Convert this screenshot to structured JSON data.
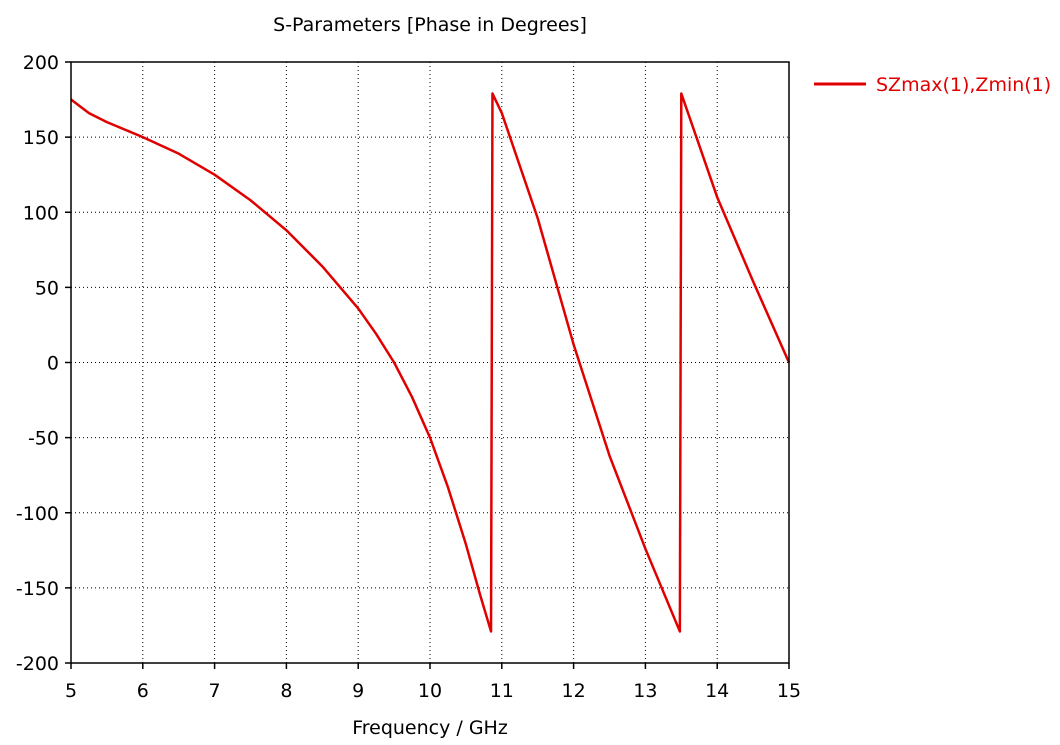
{
  "chart_data": {
    "type": "line",
    "title": "S-Parameters [Phase in Degrees]",
    "xlabel": "Frequency / GHz",
    "ylabel": "",
    "xlim": [
      5,
      15
    ],
    "ylim": [
      -200,
      200
    ],
    "x_ticks": [
      "5",
      "6",
      "7",
      "8",
      "9",
      "10",
      "11",
      "12",
      "13",
      "14",
      "15"
    ],
    "y_ticks": [
      "200",
      "150",
      "100",
      "50",
      "0",
      "-50",
      "-100",
      "-150",
      "-200"
    ],
    "grid": true,
    "legend_position": "top-right, outside plot",
    "series": [
      {
        "name": "SZmax(1),Zmin(1)",
        "color": "#e00000",
        "points": [
          [
            5.0,
            175
          ],
          [
            5.25,
            166
          ],
          [
            5.5,
            160
          ],
          [
            5.75,
            155
          ],
          [
            6.0,
            150
          ],
          [
            6.5,
            139
          ],
          [
            7.0,
            125
          ],
          [
            7.5,
            108
          ],
          [
            8.0,
            88
          ],
          [
            8.5,
            64
          ],
          [
            9.0,
            36
          ],
          [
            9.25,
            19
          ],
          [
            9.5,
            0
          ],
          [
            9.75,
            -23
          ],
          [
            10.0,
            -50
          ],
          [
            10.25,
            -83
          ],
          [
            10.5,
            -121
          ],
          [
            10.7,
            -155
          ],
          [
            10.85,
            -179
          ],
          [
            10.86,
            0
          ],
          [
            10.87,
            179
          ],
          [
            11.0,
            166
          ],
          [
            11.5,
            96
          ],
          [
            12.0,
            12
          ],
          [
            12.5,
            -62
          ],
          [
            13.0,
            -124
          ],
          [
            13.48,
            -179
          ],
          [
            13.49,
            0
          ],
          [
            13.5,
            179
          ],
          [
            14.0,
            110
          ],
          [
            14.5,
            54
          ],
          [
            15.0,
            0
          ]
        ]
      }
    ]
  }
}
